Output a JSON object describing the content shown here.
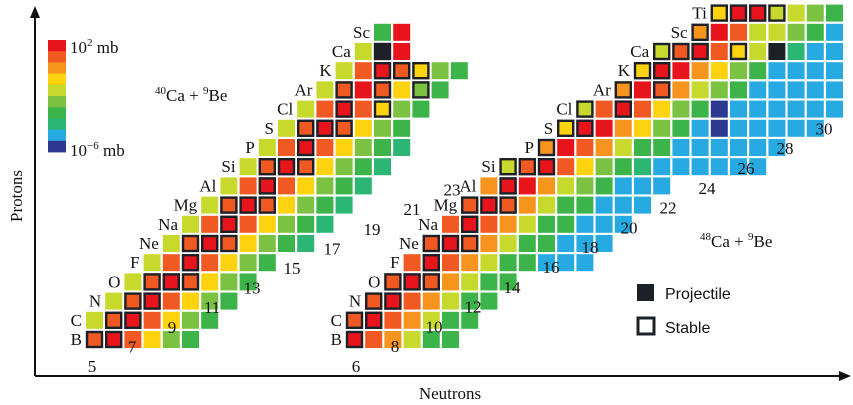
{
  "axes": {
    "x_label": "Neutrons",
    "y_label": "Protons"
  },
  "colorbar": {
    "top_label": "10",
    "top_exp": "2",
    "top_unit": " mb",
    "bottom_label": "10",
    "bottom_exp": "−6",
    "bottom_unit": " mb",
    "colors": [
      "#e8141c",
      "#f05a22",
      "#f7941d",
      "#fdd20e",
      "#c8d92e",
      "#7cc242",
      "#3cb44a",
      "#2bb673",
      "#27aae1",
      "#2b3990"
    ]
  },
  "legend": {
    "projectile": "Projectile",
    "stable": "Stable"
  },
  "reactions": [
    {
      "a": "40",
      "el1": "Ca",
      "sep": " + ",
      "b": "9",
      "el2": "Be"
    },
    {
      "a": "48",
      "el1": "Ca",
      "sep": " + ",
      "b": "9",
      "el2": "Be"
    }
  ],
  "panel1": {
    "element_labels": [
      "B",
      "C",
      "N",
      "O",
      "F",
      "Ne",
      "Na",
      "Mg",
      "Al",
      "Si",
      "P",
      "S",
      "Cl",
      "Ar",
      "K",
      "Ca",
      "Sc"
    ],
    "neutron_labels": [
      "5",
      "7",
      "9",
      "11",
      "13",
      "15",
      "17",
      "19",
      "21",
      "23"
    ]
  },
  "panel2": {
    "element_labels": [
      "B",
      "C",
      "N",
      "O",
      "F",
      "Ne",
      "Na",
      "Mg",
      "Al",
      "Si",
      "P",
      "S",
      "Cl",
      "Ar",
      "K",
      "Ca",
      "Sc",
      "Ti"
    ],
    "neutron_labels": [
      "6",
      "8",
      "10",
      "12",
      "14",
      "16",
      "18",
      "20",
      "22",
      "24",
      "26",
      "28",
      "30"
    ]
  }
}
